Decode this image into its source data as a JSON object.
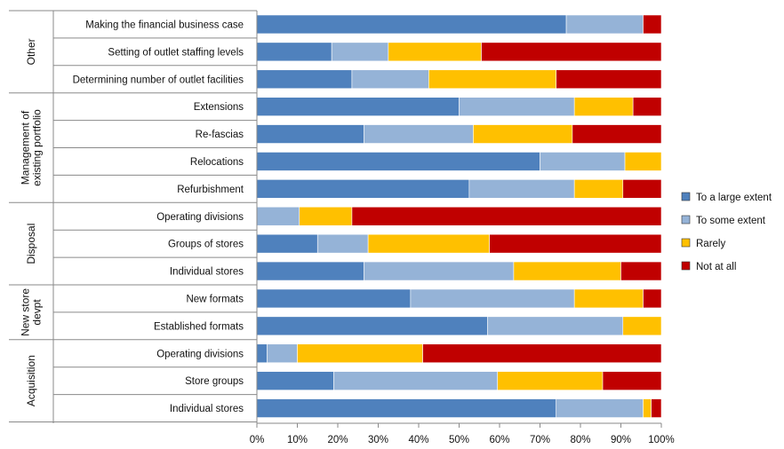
{
  "chart_data": {
    "type": "bar",
    "orientation": "horizontal",
    "stacked": true,
    "normalized": true,
    "title": "",
    "xlabel": "",
    "ylabel": "",
    "xlim": [
      0,
      100
    ],
    "x_ticks": [
      "0%",
      "10%",
      "20%",
      "30%",
      "40%",
      "50%",
      "60%",
      "70%",
      "80%",
      "90%",
      "100%"
    ],
    "legend": {
      "placement": "right"
    },
    "categories": [
      "Making the financial business case",
      "Setting of outlet staffing levels",
      "Determining number of outlet facilities",
      "Extensions",
      "Re-fascias",
      "Relocations",
      "Refurbishment",
      "Operating divisions",
      "Groups of stores",
      "Individual stores",
      "New formats",
      "Established formats",
      "Operating divisions",
      "Store groups",
      "Individual stores"
    ],
    "groups": [
      {
        "label": "Other",
        "lines": [
          "Other"
        ],
        "start": 0,
        "end": 2
      },
      {
        "label": "Management of existing portfolio",
        "lines": [
          "Management of",
          "existing portfolio"
        ],
        "start": 3,
        "end": 6
      },
      {
        "label": "Disposal",
        "lines": [
          "Disposal"
        ],
        "start": 7,
        "end": 9
      },
      {
        "label": "New store devpt",
        "lines": [
          "New store",
          "devpt"
        ],
        "start": 10,
        "end": 11
      },
      {
        "label": "Acquisition",
        "lines": [
          "Acquisition"
        ],
        "start": 12,
        "end": 14
      }
    ],
    "series": [
      {
        "name": "To a large extent",
        "color": "#4f81bd",
        "values": [
          76.5,
          18.5,
          23.5,
          50,
          26.5,
          70,
          52.5,
          0,
          15,
          26.5,
          38,
          57,
          2.5,
          19,
          74
        ]
      },
      {
        "name": "To some extent",
        "color": "#95b3d7",
        "values": [
          19,
          14,
          19,
          28.5,
          27,
          21,
          26,
          10.5,
          12.5,
          37,
          40.5,
          33.5,
          7.5,
          40.5,
          21.5
        ]
      },
      {
        "name": "Rarely",
        "color": "#ffc000",
        "values": [
          0,
          23,
          31.5,
          14.5,
          24.5,
          9,
          12,
          13,
          30,
          26.5,
          17,
          9.5,
          31,
          26,
          2
        ]
      },
      {
        "name": "Not at all",
        "color": "#c00000",
        "values": [
          4.5,
          44.5,
          26,
          7,
          22,
          0,
          9.5,
          76.5,
          42.5,
          10,
          4.5,
          0,
          59,
          14.5,
          2.5
        ]
      }
    ]
  }
}
